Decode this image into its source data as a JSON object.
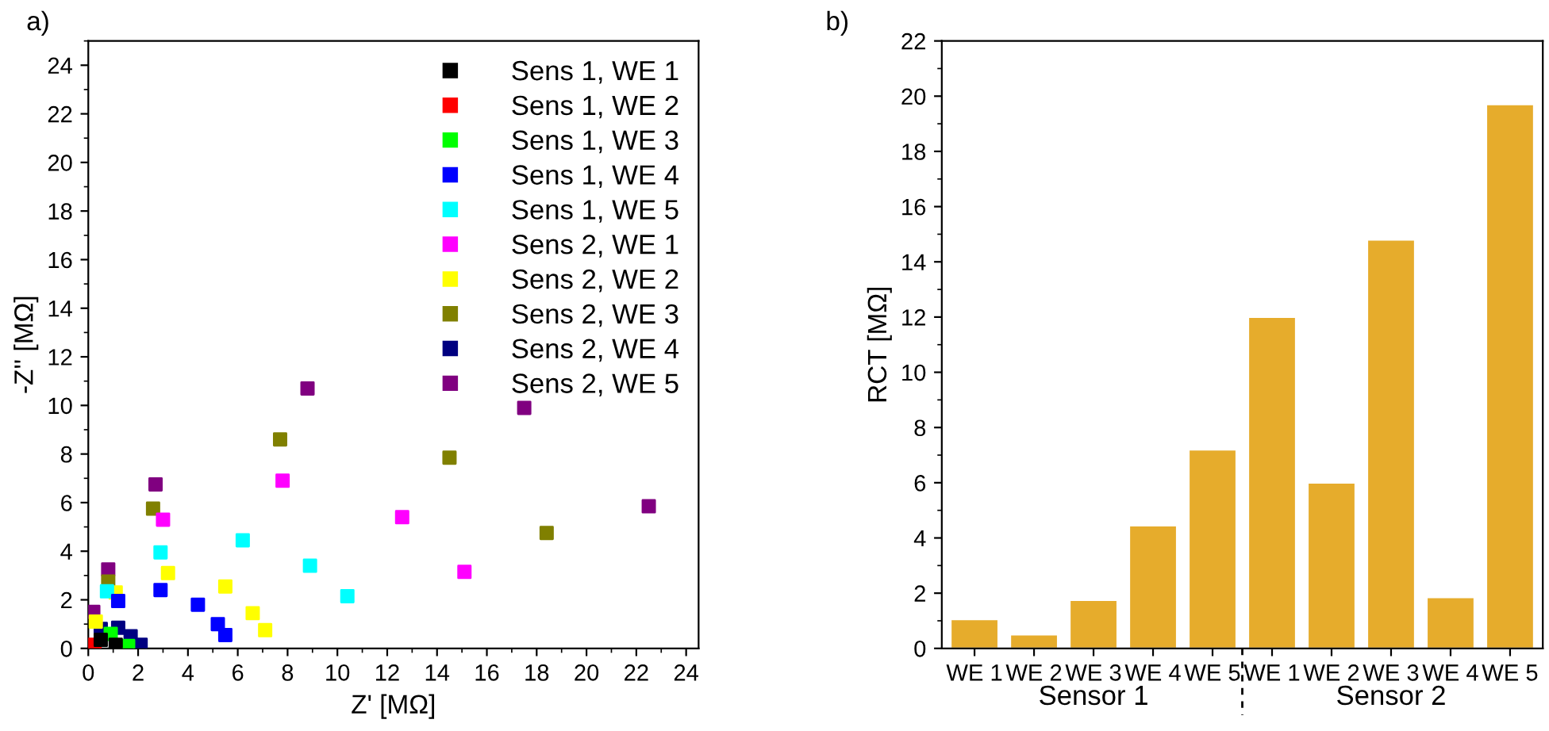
{
  "chart_data": [
    {
      "type": "scatter",
      "title": "a)",
      "xlabel": "Z' [MΩ]",
      "ylabel": "-Z'' [MΩ]",
      "xlim": [
        0,
        24.5
      ],
      "ylim": [
        0,
        25
      ],
      "xticks": [
        0,
        2,
        4,
        6,
        8,
        10,
        12,
        14,
        16,
        18,
        20,
        22,
        24
      ],
      "yticks": [
        0,
        2,
        4,
        6,
        8,
        10,
        12,
        14,
        16,
        18,
        20,
        22,
        24
      ],
      "marker": "square",
      "legend": "top right",
      "grid": false,
      "series": [
        {
          "name": "Sens 1, WE 1",
          "color": "#000000",
          "x": [
            0.5,
            1.1
          ],
          "values": [
            0.35,
            0.15
          ]
        },
        {
          "name": "Sens 1, WE 2",
          "color": "#ff0000",
          "x": [
            0.25
          ],
          "values": [
            0.15
          ]
        },
        {
          "name": "Sens 1, WE 3",
          "color": "#00ff00",
          "x": [
            0.9,
            1.6
          ],
          "values": [
            0.6,
            0.1
          ]
        },
        {
          "name": "Sens 1, WE 4",
          "color": "#0000ff",
          "x": [
            1.2,
            2.9,
            4.4,
            5.2,
            5.5
          ],
          "values": [
            1.95,
            2.4,
            1.8,
            1.0,
            0.55
          ]
        },
        {
          "name": "Sens 1, WE 5",
          "color": "#00ffff",
          "x": [
            0.75,
            2.9,
            6.2,
            8.9,
            10.4
          ],
          "values": [
            2.35,
            3.95,
            4.45,
            3.4,
            2.15
          ]
        },
        {
          "name": "Sens 2, WE 1",
          "color": "#ff00ff",
          "x": [
            3.0,
            7.8,
            12.6,
            15.1
          ],
          "values": [
            5.3,
            6.9,
            5.4,
            3.15
          ]
        },
        {
          "name": "Sens 2, WE 2",
          "color": "#ffff00",
          "x": [
            0.3,
            1.1,
            3.2,
            5.5,
            6.6,
            7.1
          ],
          "values": [
            1.1,
            2.3,
            3.1,
            2.55,
            1.45,
            0.75
          ]
        },
        {
          "name": "Sens 2, WE 3",
          "color": "#808000",
          "x": [
            0.8,
            2.6,
            7.7,
            14.5,
            18.4
          ],
          "values": [
            2.75,
            5.75,
            8.6,
            7.85,
            4.75
          ]
        },
        {
          "name": "Sens 2, WE 4",
          "color": "#000080",
          "x": [
            0.5,
            1.2,
            1.7,
            2.1
          ],
          "values": [
            0.8,
            0.85,
            0.5,
            0.15
          ]
        },
        {
          "name": "Sens 2, WE 5",
          "color": "#800080",
          "x": [
            0.2,
            0.8,
            2.7,
            8.8,
            17.5,
            22.5
          ],
          "values": [
            1.5,
            3.25,
            6.75,
            10.7,
            9.9,
            5.85
          ]
        }
      ]
    },
    {
      "type": "bar",
      "title": "b)",
      "ylabel": "RCT [MΩ]",
      "categories": [
        "WE 1",
        "WE 2",
        "WE 3",
        "WE 4",
        "WE 5",
        "WE 1",
        "WE 2",
        "WE 3",
        "WE 4",
        "WE 5"
      ],
      "values": [
        1.05,
        0.5,
        1.75,
        4.45,
        7.2,
        12.0,
        6.0,
        14.8,
        1.85,
        19.7
      ],
      "color": "#e6ac2c",
      "ylim": [
        0,
        22
      ],
      "yticks": [
        0,
        2,
        4,
        6,
        8,
        10,
        12,
        14,
        16,
        18,
        20,
        22
      ],
      "grid": false,
      "annotations": [
        "Sensor 1",
        "Sensor 2"
      ]
    }
  ]
}
